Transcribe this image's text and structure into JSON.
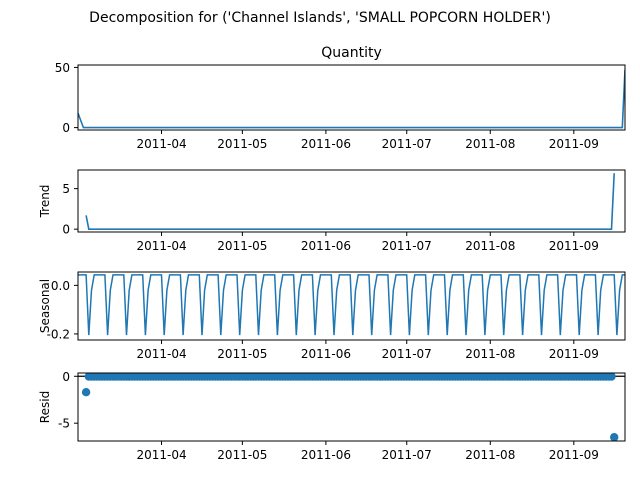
{
  "figure": {
    "suptitle": "Decomposition for ('Channel Islands', 'SMALL POPCORN HOLDER')"
  },
  "colors": {
    "series": "#1f77b4",
    "axis": "#000000",
    "background": "#ffffff"
  },
  "chart_data": [
    {
      "type": "line",
      "title": "Quantity",
      "ylabel": "",
      "xlim": [
        "2011-03-01",
        "2011-09-20"
      ],
      "ylim": [
        -2,
        52
      ],
      "yticks": [
        0,
        50
      ],
      "xticks": [
        "2011-04",
        "2011-05",
        "2011-06",
        "2011-07",
        "2011-08",
        "2011-09"
      ],
      "series": [
        {
          "x": [
            "2011-03-01",
            "2011-03-03",
            "2011-09-19",
            "2011-09-20"
          ],
          "values": [
            12,
            0,
            0,
            48
          ]
        }
      ]
    },
    {
      "type": "line",
      "title": "",
      "ylabel": "Trend",
      "xlim": [
        "2011-03-01",
        "2011-09-20"
      ],
      "ylim": [
        -0.35,
        7.3
      ],
      "yticks": [
        0,
        5
      ],
      "xticks": [
        "2011-04",
        "2011-05",
        "2011-06",
        "2011-07",
        "2011-08",
        "2011-09"
      ],
      "series": [
        {
          "x": [
            "2011-03-04",
            "2011-03-05",
            "2011-09-15",
            "2011-09-16"
          ],
          "values": [
            1.7,
            0,
            0,
            6.9
          ]
        }
      ]
    },
    {
      "type": "line",
      "title": "",
      "ylabel": "Seasonal",
      "xlim": [
        "2011-03-01",
        "2011-09-20"
      ],
      "ylim": [
        -0.225,
        0.055
      ],
      "yticks": [
        "0.0",
        "-0.2"
      ],
      "xticks": [
        "2011-04",
        "2011-05",
        "2011-06",
        "2011-07",
        "2011-08",
        "2011-09"
      ],
      "period_days": 7,
      "pattern": [
        0.043,
        0.043,
        0.043,
        0.043,
        -0.205,
        -0.02,
        0.043
      ],
      "series": [
        {
          "x_start": "2011-03-01",
          "x_end": "2011-09-20"
        }
      ]
    },
    {
      "type": "scatter",
      "title": "",
      "ylabel": "Resid",
      "xlim": [
        "2011-03-01",
        "2011-09-20"
      ],
      "ylim": [
        -6.9,
        0.35
      ],
      "yticks": [
        0,
        -5
      ],
      "xticks": [
        "2011-04",
        "2011-05",
        "2011-06",
        "2011-07",
        "2011-08",
        "2011-09"
      ],
      "baseline": 0,
      "series": [
        {
          "x_start": "2011-03-04",
          "x_end": "2011-09-16",
          "default_value": -0.02,
          "outliers": [
            {
              "x": "2011-03-04",
              "value": -1.7
            },
            {
              "x": "2011-09-16",
              "value": -6.5
            }
          ]
        }
      ]
    }
  ]
}
